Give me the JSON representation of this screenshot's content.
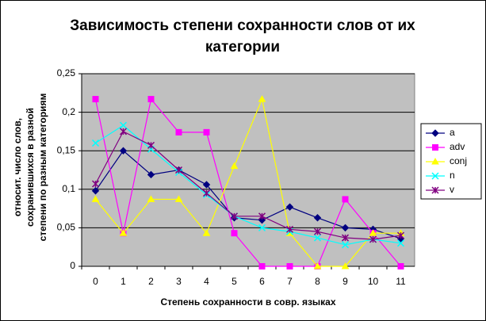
{
  "chart_data": {
    "type": "line",
    "title": "Зависимость степени сохранности слов от их категории",
    "x_label": "Степень сохранности в совр. языках",
    "y_label": [
      "относит. число слов,",
      "сохранившихся в разной",
      "степени по разным категориям"
    ],
    "categories": [
      "0",
      "1",
      "2",
      "3",
      "4",
      "5",
      "6",
      "7",
      "8",
      "9",
      "10",
      "11"
    ],
    "ylim": [
      0,
      0.25
    ],
    "yticks": [
      0,
      {
        "value": 0.05,
        "label": "0,05"
      },
      {
        "value": 0.1,
        "label": "0,1"
      },
      {
        "value": 0.15,
        "label": "0,15"
      },
      {
        "value": 0.2,
        "label": "0,2"
      },
      {
        "value": 0.25,
        "label": "0,25"
      }
    ],
    "grid": true,
    "legend": "right",
    "series": [
      {
        "name": "a",
        "color": "#000080",
        "marker": "diamond",
        "values": [
          0.098,
          0.15,
          0.119,
          0.125,
          0.106,
          0.063,
          0.06,
          0.077,
          0.063,
          0.05,
          0.048,
          0.036
        ]
      },
      {
        "name": "adv",
        "color": "#ff00ff",
        "marker": "square",
        "values": [
          0.217,
          0.043,
          0.217,
          0.174,
          0.174,
          0.043,
          0,
          0,
          0,
          0.087,
          0.043,
          0
        ]
      },
      {
        "name": "conj",
        "color": "#ffff00",
        "marker": "triangle",
        "values": [
          0.087,
          0.043,
          0.087,
          0.087,
          0.043,
          0.13,
          0.217,
          0.043,
          0,
          0,
          0.043,
          0.043
        ]
      },
      {
        "name": "n",
        "color": "#00ffff",
        "marker": "x",
        "values": [
          0.16,
          0.183,
          0.152,
          0.122,
          0.093,
          0.065,
          0.05,
          0.045,
          0.037,
          0.028,
          0.035,
          0.03
        ]
      },
      {
        "name": "v",
        "color": "#800080",
        "marker": "star",
        "values": [
          0.107,
          0.175,
          0.157,
          0.125,
          0.095,
          0.065,
          0.065,
          0.048,
          0.045,
          0.037,
          0.035,
          0.04
        ]
      }
    ]
  }
}
